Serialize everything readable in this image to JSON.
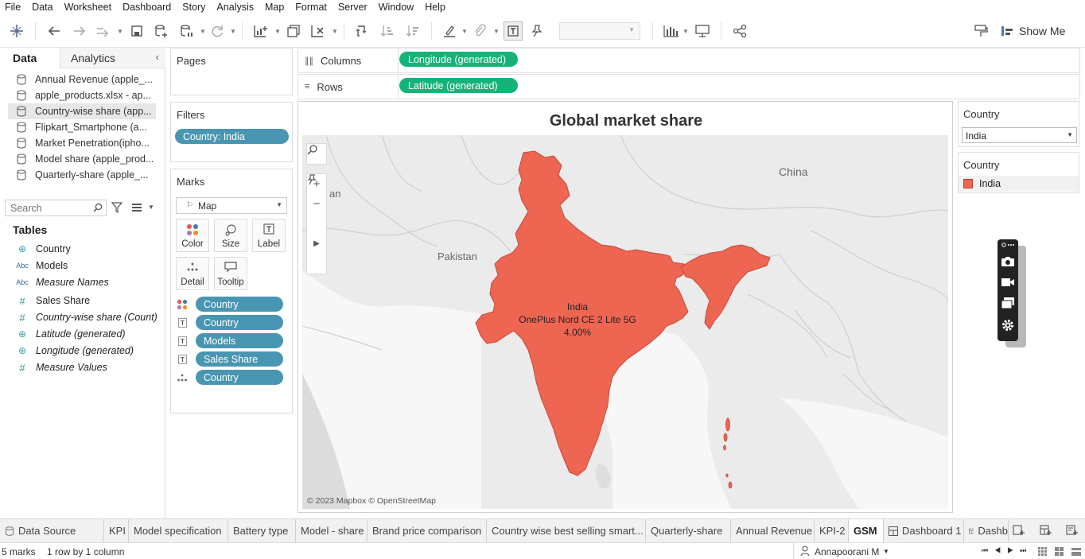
{
  "menu": [
    "File",
    "Data",
    "Worksheet",
    "Dashboard",
    "Story",
    "Analysis",
    "Map",
    "Format",
    "Server",
    "Window",
    "Help"
  ],
  "toolbar": {
    "show_me": "Show Me",
    "icons": [
      "tableau-logo-icon",
      "undo-icon",
      "redo-icon",
      "replay-icon",
      "save-icon",
      "new-datasource-icon",
      "pause-updates-icon",
      "refresh-icon",
      "new-worksheet-icon",
      "duplicate-icon",
      "clear-sheet-icon",
      "swap-icon",
      "sort-asc-icon",
      "sort-desc-icon",
      "highlight-icon",
      "group-icon",
      "show-labels-icon",
      "pin-icon",
      "fit-dropdown",
      "chart-bars-icon",
      "presentation-icon",
      "share-icon",
      "format-painter-icon"
    ]
  },
  "data_pane": {
    "tab_data": "Data",
    "tab_analytics": "Analytics",
    "datasources": [
      "Annual Revenue (apple_...",
      "apple_products.xlsx - ap...",
      "Country-wise share (app...",
      "Flipkart_Smartphone (a...",
      "Market Penetration(ipho...",
      "Model share (apple_prod...",
      "Quarterly-share (apple_..."
    ],
    "active_datasource_index": 2,
    "search_placeholder": "Search",
    "tables_title": "Tables",
    "fields": [
      {
        "icon": "geo",
        "label": "Country",
        "italic": false
      },
      {
        "icon": "abc",
        "label": "Models",
        "italic": false
      },
      {
        "icon": "abc",
        "label": "Measure Names",
        "italic": true
      },
      {
        "icon": "num",
        "label": "Sales Share",
        "italic": false
      },
      {
        "icon": "num",
        "label": "Country-wise share (Count)",
        "italic": true
      },
      {
        "icon": "geo",
        "label": "Latitude (generated)",
        "italic": true
      },
      {
        "icon": "geo",
        "label": "Longitude (generated)",
        "italic": true
      },
      {
        "icon": "num",
        "label": "Measure Values",
        "italic": true
      }
    ]
  },
  "pages_title": "Pages",
  "filters": {
    "title": "Filters",
    "pill": "Country: India"
  },
  "marks": {
    "title": "Marks",
    "mark_type": "Map",
    "buttons": [
      "Color",
      "Size",
      "Label",
      "Detail",
      "Tooltip"
    ],
    "fields": [
      {
        "type": "color",
        "label": "Country"
      },
      {
        "type": "label",
        "label": "Country"
      },
      {
        "type": "label",
        "label": "Models"
      },
      {
        "type": "label",
        "label": "Sales Share"
      },
      {
        "type": "detail",
        "label": "Country"
      }
    ]
  },
  "shelves": {
    "columns_label": "Columns",
    "columns_pill": "Longitude (generated)",
    "rows_label": "Rows",
    "rows_pill": "Latitude (generated)"
  },
  "view": {
    "title": "Global market share",
    "map_labels": {
      "china": "China",
      "pakistan": "Pakistan",
      "iran_partial": "an"
    },
    "tooltip": {
      "country": "India",
      "model": "OnePlus Nord CE 2 Lite 5G",
      "share": "4.00%"
    },
    "attribution": "© 2023 Mapbox © OpenStreetMap",
    "highlight_color": "#ee6552"
  },
  "right": {
    "filter_title": "Country",
    "filter_value": "India",
    "legend_title": "Country",
    "legend_item": "India",
    "legend_color": "#ee6552"
  },
  "sheet_tabs": [
    {
      "label": "Data Source",
      "icon": "datasource-icon",
      "active": false
    },
    {
      "label": "KPI",
      "active": false
    },
    {
      "label": "Model specification",
      "active": false
    },
    {
      "label": "Battery type",
      "active": false
    },
    {
      "label": "Model - share",
      "active": false
    },
    {
      "label": "Brand price comparison",
      "active": false
    },
    {
      "label": "Country wise best selling smart...",
      "active": false
    },
    {
      "label": "Quarterly-share",
      "active": false
    },
    {
      "label": "Annual Revenue",
      "active": false
    },
    {
      "label": "KPI-2",
      "active": false
    },
    {
      "label": "GSM",
      "active": true
    },
    {
      "label": "Dashboard 1",
      "icon": "dashboard-icon",
      "active": false
    },
    {
      "label": "Dashb",
      "icon": "dashboard-icon",
      "active": false
    }
  ],
  "status": {
    "marks": "5 marks",
    "rows_cols": "1 row by 1 column",
    "user": "Annapoorani  M"
  }
}
